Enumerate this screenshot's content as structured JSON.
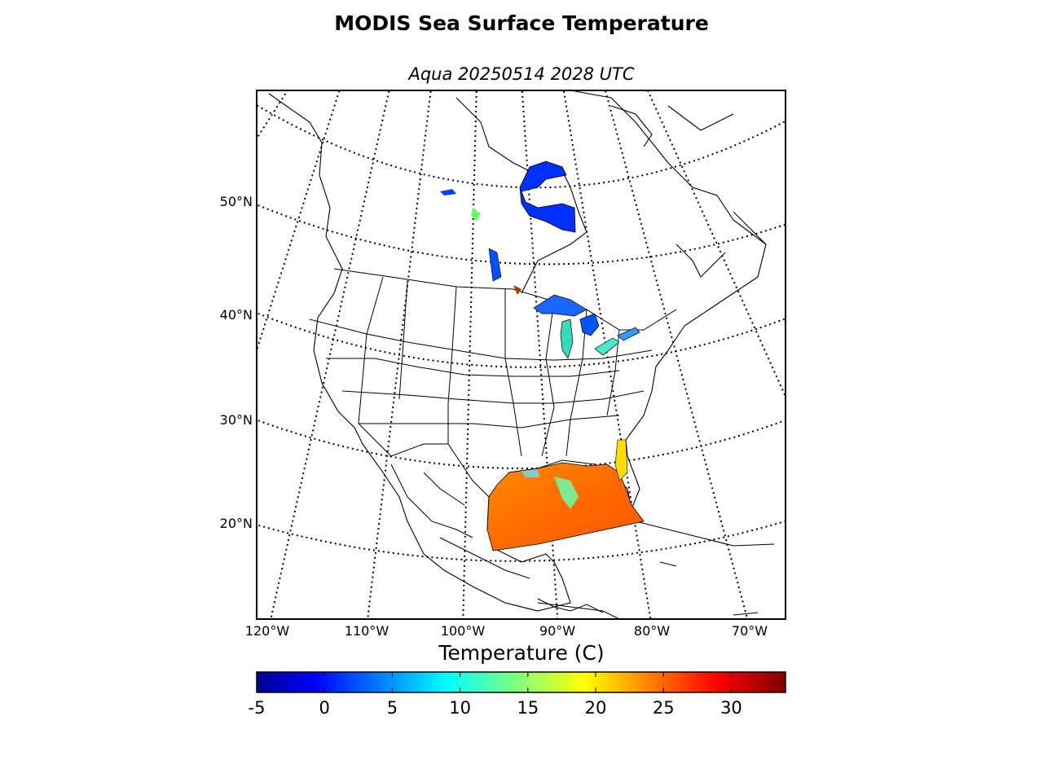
{
  "title": "MODIS Sea Surface Temperature",
  "subtitle": "Aqua 20250514 2028 UTC",
  "map": {
    "lat_labels": [
      "50°N",
      "40°N",
      "30°N",
      "20°N"
    ],
    "lon_labels": [
      "120°W",
      "110°W",
      "100°W",
      "90°W",
      "80°W",
      "70°W"
    ]
  },
  "colorbar": {
    "label": "Temperature (C)",
    "ticks": [
      "-5",
      "0",
      "5",
      "10",
      "15",
      "20",
      "25",
      "30"
    ],
    "colormap": "jet",
    "range": [
      -5,
      34
    ]
  },
  "colors": {
    "gulf_sst": "#ff7a00",
    "lake_cold": "#0033ff",
    "great_lakes": "#33ddcc"
  }
}
